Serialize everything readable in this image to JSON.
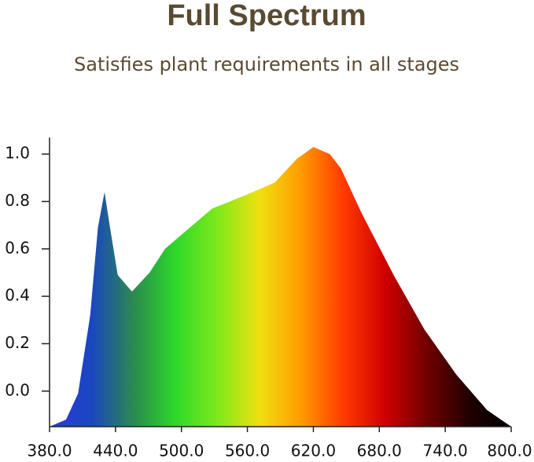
{
  "chart_data": {
    "type": "area",
    "title": "Full Spectrum",
    "subtitle": "Satisfies plant requirements in all stages",
    "x": [
      380,
      395,
      406,
      417,
      424,
      430,
      435,
      442,
      455,
      471,
      485,
      500,
      528,
      560,
      585,
      605,
      620,
      635,
      645,
      664,
      693,
      721,
      750,
      778,
      800
    ],
    "values": [
      -0.15,
      -0.12,
      -0.01,
      0.32,
      0.69,
      0.84,
      0.69,
      0.49,
      0.42,
      0.5,
      0.6,
      0.66,
      0.77,
      0.83,
      0.88,
      0.98,
      1.03,
      1.0,
      0.94,
      0.75,
      0.49,
      0.26,
      0.07,
      -0.08,
      -0.15
    ],
    "colors": [
      "#2a3bd8",
      "#1a46c0",
      "#2a8a50",
      "#2ed82a",
      "#7ee81a",
      "#f0e010",
      "#ff9a00",
      "#ff3a00",
      "#d00000",
      "#700000",
      "#200000",
      "#000000"
    ],
    "xlim": [
      380,
      800
    ],
    "xticks": [
      {
        "value": 380,
        "label": "380.0"
      },
      {
        "value": 440,
        "label": "440.0"
      },
      {
        "value": 500,
        "label": "500.0"
      },
      {
        "value": 560,
        "label": "560.0"
      },
      {
        "value": 620,
        "label": "620.0"
      },
      {
        "value": 680,
        "label": "680.0"
      },
      {
        "value": 740,
        "label": "740.0"
      },
      {
        "value": 800,
        "label": "800.0"
      }
    ],
    "ylim": [
      -0.15,
      1.07
    ],
    "yticks": [
      {
        "value": 0,
        "label": "0.0"
      },
      0.2,
      0.4,
      0.6,
      0.8,
      {
        "value": 1,
        "label": "1.0"
      }
    ]
  }
}
